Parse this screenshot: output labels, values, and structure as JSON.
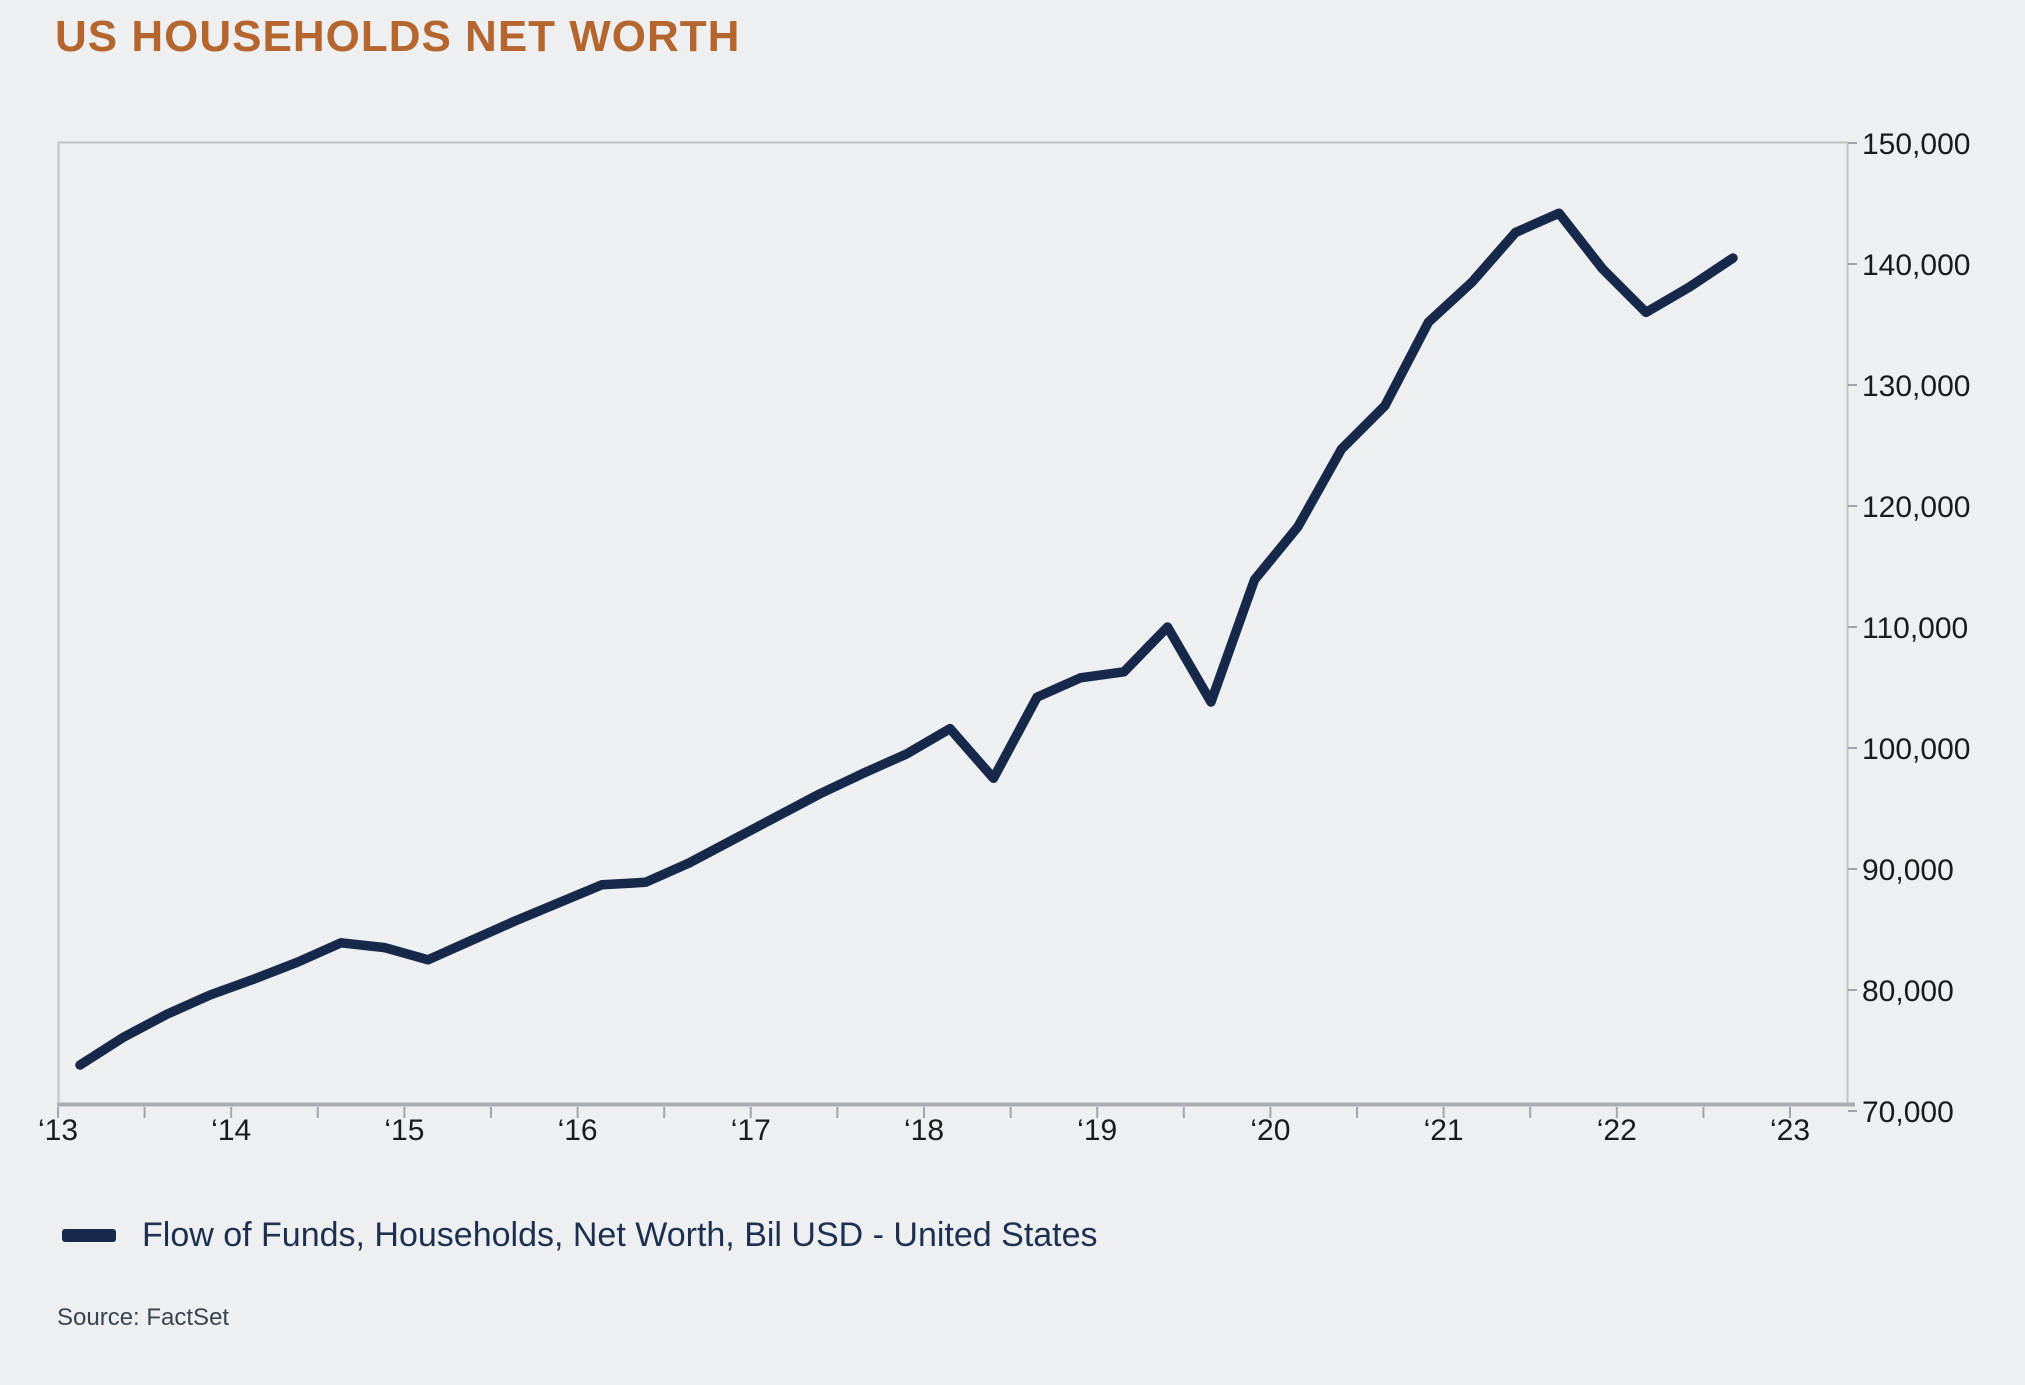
{
  "header": {
    "title": "US HOUSEHOLDS NET WORTH"
  },
  "legend": {
    "label": "Flow of Funds, Households, Net Worth, Bil USD - United States"
  },
  "source": {
    "text": "Source: FactSet"
  },
  "colors": {
    "background": "#edeff1",
    "title": "#b4662e",
    "line": "#17294a",
    "frame_border": "#c1c5c8",
    "axis_line": "#a9aeb3",
    "tick": "#9fa5ab",
    "tick_label": "#1b1b1b",
    "legend_text": "#1e3050",
    "source_text": "#3a4450"
  },
  "chart_data": {
    "type": "line",
    "title": "US HOUSEHOLDS NET WORTH",
    "unit": "Bil USD",
    "frequency": "quarterly",
    "grid": false,
    "legend_position": "bottom-left",
    "ylim": [
      70000,
      150000
    ],
    "y_axis_side": "right",
    "x_tick_labels": [
      "‘13",
      "‘14",
      "‘15",
      "‘16",
      "‘17",
      "‘18",
      "‘19",
      "‘20",
      "‘21",
      "‘22",
      "‘23"
    ],
    "y_ticks": [
      150000,
      140000,
      130000,
      120000,
      110000,
      100000,
      90000,
      80000,
      70000
    ],
    "y_tick_labels": [
      "150,000",
      "140,000",
      "130,000",
      "120,000",
      "110,000",
      "100,000",
      "90,000",
      "80,000",
      "70,000"
    ],
    "series": [
      {
        "name": "Flow of Funds, Households, Net Worth, Bil USD - United States",
        "color": "#17294a",
        "periods": [
          "2013 Q1",
          "2013 Q2",
          "2013 Q3",
          "2013 Q4",
          "2014 Q1",
          "2014 Q2",
          "2014 Q3",
          "2014 Q4",
          "2015 Q1",
          "2015 Q2",
          "2015 Q3",
          "2015 Q4",
          "2016 Q1",
          "2016 Q2",
          "2016 Q3",
          "2016 Q4",
          "2017 Q1",
          "2017 Q2",
          "2017 Q3",
          "2017 Q4",
          "2018 Q1",
          "2018 Q2",
          "2018 Q3",
          "2018 Q4",
          "2019 Q1",
          "2019 Q2",
          "2019 Q3",
          "2019 Q4",
          "2020 Q1",
          "2020 Q2",
          "2020 Q3",
          "2020 Q4",
          "2021 Q1",
          "2021 Q2",
          "2021 Q3",
          "2021 Q4",
          "2022 Q1",
          "2022 Q2",
          "2022 Q3"
        ],
        "values": [
          73800,
          76100,
          78000,
          79600,
          80900,
          82300,
          83900,
          83500,
          82500,
          84100,
          85700,
          87200,
          88700,
          88900,
          90500,
          92400,
          94300,
          96200,
          97900,
          99500,
          101600,
          97500,
          104200,
          105800,
          106300,
          110000,
          103800,
          113900,
          118300,
          124700,
          128300,
          135200,
          138500,
          142600,
          144200,
          139600,
          136000,
          138100,
          140500
        ]
      }
    ]
  }
}
